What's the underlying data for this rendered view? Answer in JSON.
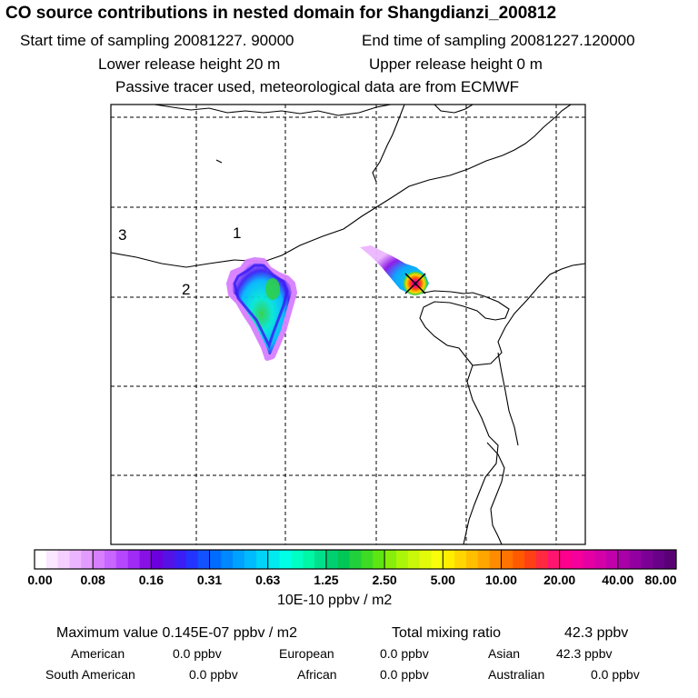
{
  "header": {
    "title": "CO  source contributions in nested domain for Shangdianzi_200812",
    "start_time_label": "Start time of sampling 20081227. 90000",
    "end_time_label": "End time of sampling 20081227.120000",
    "lower_release": "Lower release height   20 m",
    "upper_release": "Upper release height    0 m",
    "tracer_note": "Passive tracer used, meteorological data are from ECMWF"
  },
  "map": {
    "region_labels": [
      "1",
      "2",
      "3"
    ],
    "station_marker": "station-x-icon"
  },
  "colorbar": {
    "ticks": [
      "0.00",
      "0.08",
      "0.16",
      "0.31",
      "0.63",
      "1.25",
      "2.50",
      "5.00",
      "10.00",
      "20.00",
      "40.00",
      "80.00"
    ],
    "units": "10E-10 ppbv / m2",
    "colors": [
      "#ffffff",
      "#fbe7ff",
      "#f5cfff",
      "#ecb5ff",
      "#e29bff",
      "#d77fff",
      "#c866ff",
      "#b547ff",
      "#9f2bf5",
      "#8811e6",
      "#6c00dc",
      "#5412e6",
      "#3a1ef5",
      "#2434ff",
      "#1352ff",
      "#006cff",
      "#0088ff",
      "#00a2ff",
      "#00bcff",
      "#00d4f8",
      "#00eaf0",
      "#00ffe6",
      "#00ffc4",
      "#00f7a5",
      "#00e08c",
      "#00d070",
      "#00c755",
      "#20d13c",
      "#3ddb24",
      "#5ee612",
      "#86ee0a",
      "#aaf50a",
      "#c9f80a",
      "#e3fb0a",
      "#f7fd0a",
      "#ffee00",
      "#ffd600",
      "#ffbf00",
      "#ffa600",
      "#ff8c00",
      "#ff7300",
      "#ff5a00",
      "#ff4015",
      "#ff2a40",
      "#ff1470",
      "#ff008c",
      "#f5009b",
      "#e600a4",
      "#d400a8",
      "#c000aa",
      "#aa00a8",
      "#9300a2",
      "#7c0096",
      "#680088",
      "#580074"
    ]
  },
  "stats": {
    "max_label": "Maximum value  0.145E-07 ppbv / m2",
    "total_label": "Total mixing ratio",
    "total_value": "42.3 ppbv"
  },
  "sources": [
    {
      "name": "American",
      "value": "0.0 ppbv"
    },
    {
      "name": "European",
      "value": "0.0 ppbv"
    },
    {
      "name": "Asian",
      "value": "42.3 ppbv"
    },
    {
      "name": "South American",
      "value": "0.0 ppbv"
    },
    {
      "name": "African",
      "value": "0.0 ppbv"
    },
    {
      "name": "Australian",
      "value": "0.0 ppbv"
    }
  ]
}
